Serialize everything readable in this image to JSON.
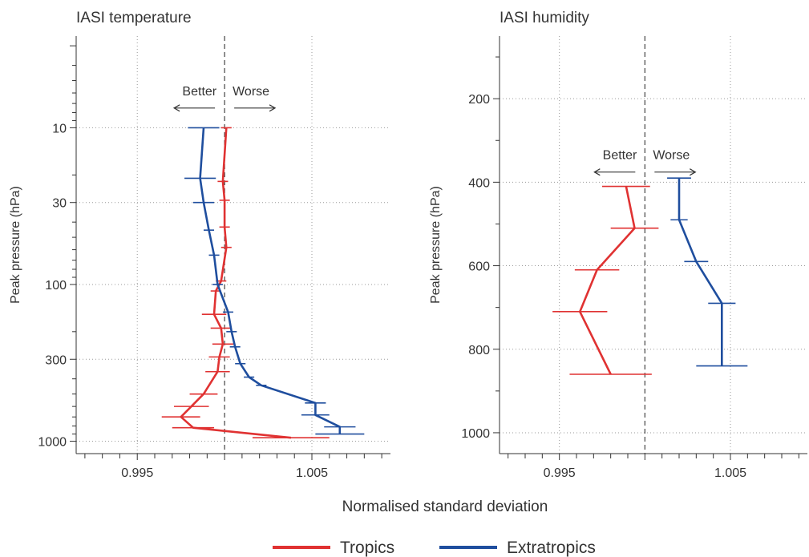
{
  "figure": {
    "xlabel": "Normalised standard deviation",
    "legend": {
      "placement": "bottom-center",
      "entries": [
        {
          "name": "Tropics",
          "color": "#e03232"
        },
        {
          "name": "Extratropics",
          "color": "#1f4e9e"
        }
      ]
    }
  },
  "chart_data": [
    {
      "type": "line",
      "title": "IASI temperature",
      "ylabel": "Peak pressure (hPa)",
      "y_scale": "log",
      "y_inverted": true,
      "xlim": [
        0.9915,
        1.0095
      ],
      "ylim": [
        1200,
        2.6
      ],
      "x_ticks": [
        0.995,
        1.005
      ],
      "x_tick_labels": [
        "0.995",
        "1.005"
      ],
      "y_ticks": [
        10,
        30,
        100,
        300,
        1000
      ],
      "y_tick_labels": [
        "10",
        "30",
        "100",
        "300",
        "1000"
      ],
      "grid": true,
      "reference_line_x": 1.0,
      "annotations": {
        "better": "Better",
        "worse": "Worse",
        "y": 6.2
      },
      "series": [
        {
          "name": "Tropics",
          "color": "#e03232",
          "points": [
            {
              "x": 1.0001,
              "y": 10,
              "err": 0.0003
            },
            {
              "x": 0.9999,
              "y": 22,
              "err": 0.0003
            },
            {
              "x": 1.0,
              "y": 29,
              "err": 0.0003
            },
            {
              "x": 1.0,
              "y": 43,
              "err": 0.0003
            },
            {
              "x": 1.0001,
              "y": 58,
              "err": 0.0003
            },
            {
              "x": 0.9998,
              "y": 95,
              "err": 0.0003
            },
            {
              "x": 0.9995,
              "y": 110,
              "err": 0.0003
            },
            {
              "x": 0.9994,
              "y": 155,
              "err": 0.0007
            },
            {
              "x": 0.9998,
              "y": 190,
              "err": 0.0006
            },
            {
              "x": 0.9999,
              "y": 240,
              "err": 0.0006
            },
            {
              "x": 0.9997,
              "y": 290,
              "err": 0.0006
            },
            {
              "x": 0.9996,
              "y": 360,
              "err": 0.0007
            },
            {
              "x": 0.9988,
              "y": 500,
              "err": 0.0008
            },
            {
              "x": 0.9981,
              "y": 600,
              "err": 0.001
            },
            {
              "x": 0.9975,
              "y": 700,
              "err": 0.0011
            },
            {
              "x": 0.9982,
              "y": 820,
              "err": 0.0012
            },
            {
              "x": 1.0038,
              "y": 950,
              "err": 0.0022
            }
          ]
        },
        {
          "name": "Extratropics",
          "color": "#1f4e9e",
          "points": [
            {
              "x": 0.9988,
              "y": 10,
              "err": 0.0009
            },
            {
              "x": 0.9986,
              "y": 21,
              "err": 0.0009
            },
            {
              "x": 0.9988,
              "y": 30,
              "err": 0.0006
            },
            {
              "x": 0.9991,
              "y": 45,
              "err": 0.0003
            },
            {
              "x": 0.9994,
              "y": 65,
              "err": 0.0003
            },
            {
              "x": 0.9996,
              "y": 100,
              "err": 0.0003
            },
            {
              "x": 1.0002,
              "y": 150,
              "err": 0.0003
            },
            {
              "x": 1.0004,
              "y": 200,
              "err": 0.0003
            },
            {
              "x": 1.0006,
              "y": 250,
              "err": 0.0003
            },
            {
              "x": 1.0009,
              "y": 320,
              "err": 0.0003
            },
            {
              "x": 1.0014,
              "y": 390,
              "err": 0.0003
            },
            {
              "x": 1.0021,
              "y": 440,
              "err": 0.0003
            },
            {
              "x": 1.0052,
              "y": 570,
              "err": 0.0006
            },
            {
              "x": 1.0052,
              "y": 680,
              "err": 0.0008
            },
            {
              "x": 1.0066,
              "y": 810,
              "err": 0.0009
            },
            {
              "x": 1.0066,
              "y": 900,
              "err": 0.0014
            }
          ]
        }
      ]
    },
    {
      "type": "line",
      "title": "IASI humidity",
      "ylabel": "Peak pressure (hPa)",
      "y_scale": "linear",
      "y_inverted": true,
      "xlim": [
        0.9915,
        1.0095
      ],
      "ylim": [
        1050,
        50
      ],
      "x_ticks": [
        0.995,
        1.005
      ],
      "x_tick_labels": [
        "0.995",
        "1.005"
      ],
      "y_ticks": [
        200,
        400,
        600,
        800,
        1000
      ],
      "y_tick_labels": [
        "200",
        "400",
        "600",
        "800",
        "1000"
      ],
      "grid": true,
      "reference_line_x": 1.0,
      "annotations": {
        "better": "Better",
        "worse": "Worse",
        "y": 345
      },
      "series": [
        {
          "name": "Tropics",
          "color": "#e03232",
          "points": [
            {
              "x": 0.9989,
              "y": 410,
              "err": 0.0014
            },
            {
              "x": 0.9994,
              "y": 510,
              "err": 0.0014
            },
            {
              "x": 0.9972,
              "y": 610,
              "err": 0.0013
            },
            {
              "x": 0.9962,
              "y": 710,
              "err": 0.0016
            },
            {
              "x": 0.998,
              "y": 860,
              "err": 0.0024
            }
          ]
        },
        {
          "name": "Extratropics",
          "color": "#1f4e9e",
          "points": [
            {
              "x": 1.002,
              "y": 390,
              "err": 0.0007
            },
            {
              "x": 1.002,
              "y": 490,
              "err": 0.0005
            },
            {
              "x": 1.003,
              "y": 590,
              "err": 0.0007
            },
            {
              "x": 1.0045,
              "y": 690,
              "err": 0.0008
            },
            {
              "x": 1.0045,
              "y": 840,
              "err": 0.0015
            }
          ]
        }
      ]
    }
  ]
}
